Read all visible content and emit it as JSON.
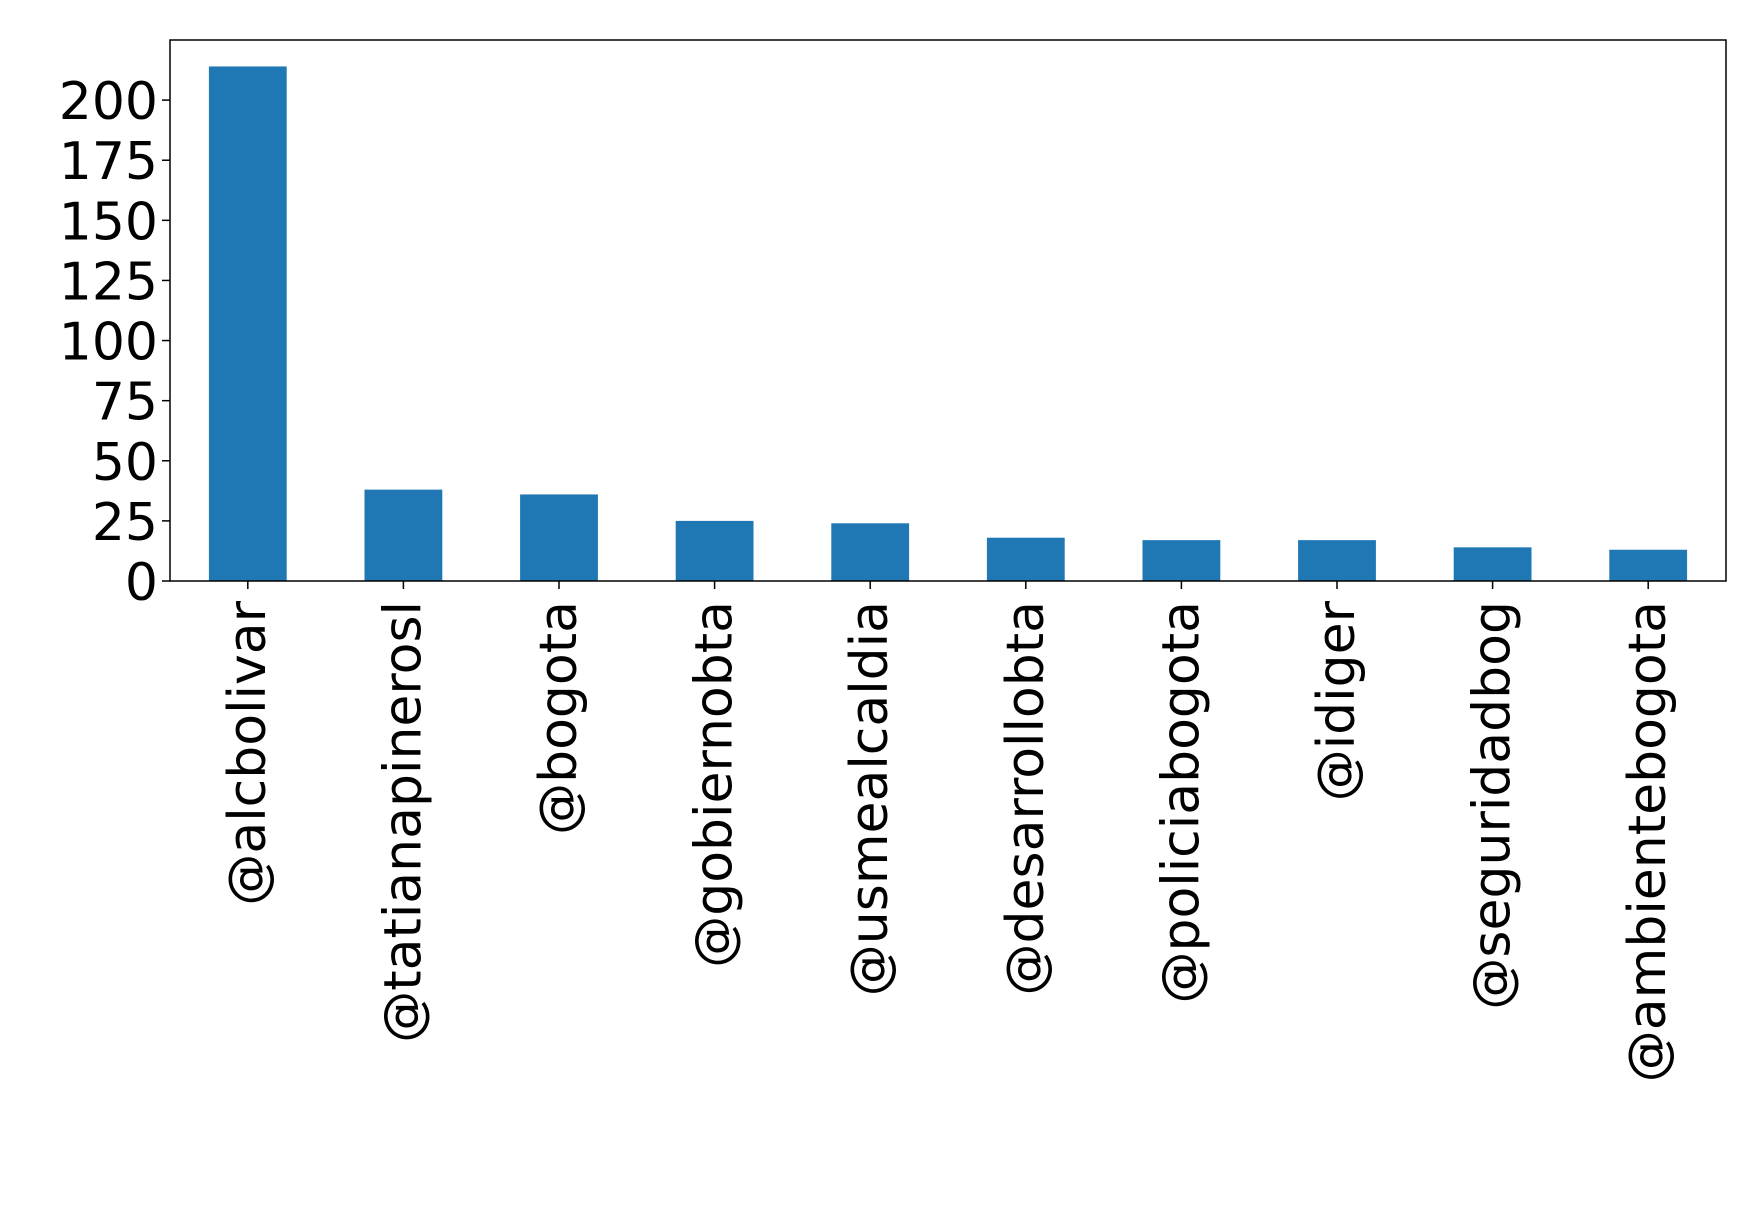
{
  "chart_data": {
    "type": "bar",
    "title": "",
    "xlabel": "",
    "ylabel": "",
    "categories": [
      "@alcbolivar",
      "@tatianapinerosl",
      "@bogota",
      "@gobiernobta",
      "@usmealcaldia",
      "@desarrollobta",
      "@policiabogota",
      "@idiger",
      "@seguridadbog",
      "@ambientebogota"
    ],
    "values": [
      214,
      38,
      36,
      25,
      24,
      18,
      17,
      17,
      14,
      13
    ],
    "ylim": [
      0,
      225
    ],
    "yticks": [
      0,
      25,
      50,
      75,
      100,
      125,
      150,
      175,
      200
    ],
    "bar_color": "#1f77b4",
    "grid": false,
    "legend": "none"
  }
}
